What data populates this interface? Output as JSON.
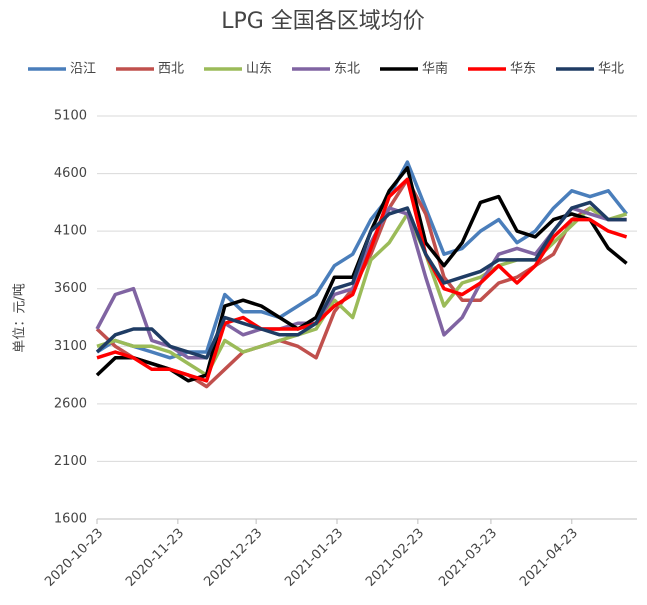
{
  "chart_data": {
    "type": "line",
    "title": "LPG 全国各区域均价",
    "y_label": "单位：元/吨",
    "x": [
      "2020-10-23",
      "2020-10-30",
      "2020-11-06",
      "2020-11-13",
      "2020-11-20",
      "2020-11-27",
      "2020-12-04",
      "2020-12-11",
      "2020-12-18",
      "2020-12-25",
      "2021-01-01",
      "2021-01-08",
      "2021-01-15",
      "2021-01-22",
      "2021-01-29",
      "2021-02-05",
      "2021-02-12",
      "2021-02-19",
      "2021-02-26",
      "2021-03-05",
      "2021-03-12",
      "2021-03-19",
      "2021-03-26",
      "2021-04-02",
      "2021-04-09",
      "2021-04-16",
      "2021-04-23",
      "2021-04-30",
      "2021-05-07",
      "2021-05-14"
    ],
    "series": [
      {
        "name": "沿江",
        "color": "#4a7ebb",
        "values": [
          3050,
          3150,
          3100,
          3050,
          3000,
          3050,
          3050,
          3550,
          3400,
          3400,
          3350,
          3450,
          3550,
          3800,
          3900,
          4200,
          4400,
          4700,
          4300,
          3900,
          3950,
          4100,
          4200,
          4000,
          4100,
          4300,
          4450,
          4400,
          4450,
          4250
        ]
      },
      {
        "name": "西北",
        "color": "#c0504d",
        "values": [
          3250,
          3100,
          3000,
          2950,
          2900,
          2850,
          2750,
          2900,
          3050,
          3100,
          3150,
          3100,
          3000,
          3400,
          3600,
          3900,
          4300,
          4550,
          4250,
          3700,
          3500,
          3500,
          3650,
          3700,
          3800,
          3900,
          4200,
          4300,
          4200,
          4200
        ]
      },
      {
        "name": "山东",
        "color": "#9bbb59",
        "values": [
          3100,
          3150,
          3100,
          3100,
          3050,
          2950,
          2850,
          3150,
          3050,
          3100,
          3150,
          3200,
          3250,
          3500,
          3350,
          3850,
          4000,
          4250,
          3900,
          3450,
          3650,
          3700,
          3800,
          3850,
          3850,
          4000,
          4150,
          4300,
          4200,
          4250
        ]
      },
      {
        "name": "东北",
        "color": "#8064a2",
        "values": [
          3250,
          3550,
          3600,
          3150,
          3100,
          3000,
          3000,
          3300,
          3200,
          3250,
          3250,
          3300,
          3300,
          3550,
          3600,
          4000,
          4300,
          4250,
          3700,
          3200,
          3350,
          3650,
          3900,
          3950,
          3900,
          4100,
          4300,
          4250,
          4200,
          4200
        ]
      },
      {
        "name": "华南",
        "color": "#000000",
        "values": [
          2850,
          3000,
          3000,
          2950,
          2900,
          2800,
          2850,
          3450,
          3500,
          3450,
          3350,
          3250,
          3350,
          3700,
          3700,
          4100,
          4450,
          4650,
          4000,
          3800,
          4000,
          4350,
          4400,
          4100,
          4050,
          4200,
          4250,
          4200,
          3950,
          3820
        ]
      },
      {
        "name": "华东",
        "color": "#ff0000",
        "values": [
          3000,
          3050,
          3000,
          2900,
          2900,
          2850,
          2800,
          3300,
          3350,
          3250,
          3250,
          3250,
          3300,
          3450,
          3550,
          3950,
          4400,
          4550,
          3900,
          3600,
          3550,
          3650,
          3800,
          3650,
          3800,
          4050,
          4200,
          4200,
          4100,
          4050
        ]
      },
      {
        "name": "华北",
        "color": "#1f3c64",
        "values": [
          3050,
          3200,
          3250,
          3250,
          3100,
          3050,
          3000,
          3350,
          3300,
          3250,
          3200,
          3200,
          3300,
          3600,
          3650,
          4100,
          4250,
          4300,
          3900,
          3650,
          3700,
          3750,
          3850,
          3850,
          3850,
          4100,
          4300,
          4350,
          4200,
          4200
        ]
      }
    ],
    "xlim": [
      "2020-10-23",
      "2021-05-18"
    ],
    "xticks": [
      "2020-10-23",
      "2020-11-23",
      "2020-12-23",
      "2021-01-23",
      "2021-02-23",
      "2021-03-23",
      "2021-04-23"
    ],
    "ylim": [
      1600,
      5100
    ],
    "yticks": [
      1600,
      2100,
      2600,
      3100,
      3600,
      4100,
      4600,
      5100
    ],
    "grid": true,
    "legend": "top"
  }
}
